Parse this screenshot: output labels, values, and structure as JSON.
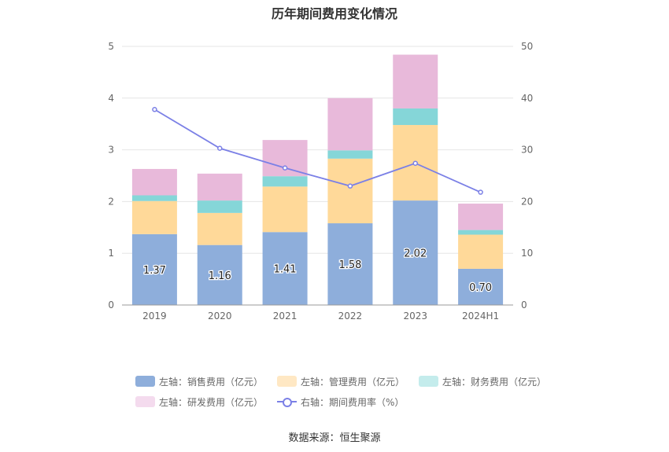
{
  "chart_data": {
    "type": "bar",
    "title": "历年期间费用变化情况",
    "categories": [
      "2019",
      "2020",
      "2021",
      "2022",
      "2023",
      "2024H1"
    ],
    "left_axis": {
      "ylim": [
        0,
        5
      ],
      "ticks": [
        "0",
        "1",
        "2",
        "3",
        "4",
        "5"
      ]
    },
    "right_axis": {
      "ylim": [
        0,
        50
      ],
      "ticks": [
        "0",
        "10",
        "20",
        "30",
        "40",
        "50"
      ]
    },
    "stacked_series": [
      {
        "name": "左轴：销售费用（亿元）",
        "color": "#8eaedb",
        "values": [
          1.37,
          1.16,
          1.41,
          1.58,
          2.02,
          0.7
        ],
        "labels": [
          "1.37",
          "1.16",
          "1.41",
          "1.58",
          "2.02",
          "0.70"
        ]
      },
      {
        "name": "左轴：管理费用（亿元）",
        "color": "#ffd999",
        "values": [
          0.64,
          0.62,
          0.88,
          1.25,
          1.46,
          0.66
        ]
      },
      {
        "name": "左轴：财务费用（亿元）",
        "color": "#85d6d8",
        "values": [
          0.11,
          0.24,
          0.2,
          0.16,
          0.32,
          0.09
        ]
      },
      {
        "name": "左轴：研发费用（亿元）",
        "color": "#e8b9da",
        "values": [
          0.51,
          0.52,
          0.7,
          1.01,
          1.04,
          0.51
        ]
      }
    ],
    "line_series": {
      "name": "右轴：期间费用率（%）",
      "color": "#7b80e6",
      "values": [
        37.8,
        30.3,
        26.5,
        23.0,
        27.4,
        21.8
      ]
    },
    "legend_position": "bottom",
    "grid": true
  },
  "legend": [
    {
      "label": "左轴：销售费用（亿元）",
      "color": "#8eaedb"
    },
    {
      "label": "左轴：管理费用（亿元）",
      "color": "#ffe8c4"
    },
    {
      "label": "左轴：财务费用（亿元）",
      "color": "#c4ecec"
    },
    {
      "label": "左轴：研发费用（亿元）",
      "color": "#f4dbee"
    },
    {
      "label": "右轴：期间费用率（%）",
      "color": "#7b80e6"
    }
  ],
  "source": "数据来源：恒生聚源"
}
